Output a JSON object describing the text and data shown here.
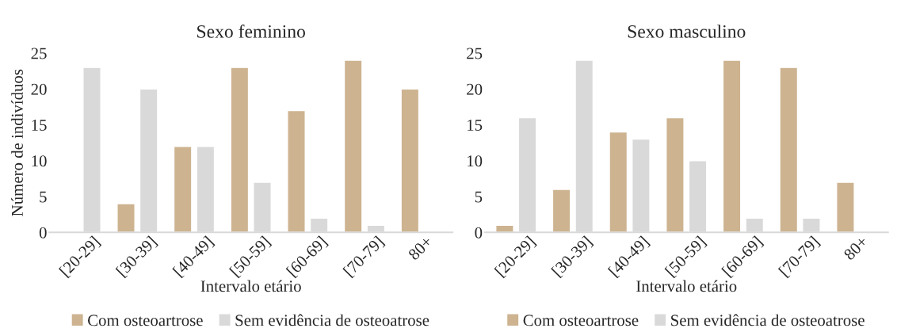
{
  "chart_data": [
    {
      "type": "bar",
      "title": "Sexo feminino",
      "xlabel": "Intervalo etário",
      "ylabel": "Número de indivíduos",
      "categories": [
        "[20-29]",
        "[30-39]",
        "[40-49]",
        "[50-59]",
        "[60-69]",
        "[70-79]",
        "80+"
      ],
      "series": [
        {
          "name": "Com osteoartrose",
          "color": "#cdb390",
          "values": [
            null,
            4,
            12,
            23,
            17,
            24,
            20
          ]
        },
        {
          "name": "Sem evidência de osteoatrose",
          "color": "#d9d9d9",
          "values": [
            23,
            20,
            12,
            7,
            2,
            1,
            null
          ]
        }
      ],
      "ylim": [
        0,
        25
      ],
      "yticks": [
        0,
        5,
        10,
        15,
        20,
        25
      ],
      "grid": false,
      "legend": "bottom"
    },
    {
      "type": "bar",
      "title": "Sexo masculino",
      "xlabel": "Intervalo etário",
      "categories": [
        "[20-29]",
        "[30-39]",
        "[40-49]",
        "[50-59]",
        "[60-69]",
        "[70-79]",
        "80+"
      ],
      "series": [
        {
          "name": "Com osteoartrose",
          "color": "#cdb390",
          "values": [
            1,
            6,
            14,
            16,
            24,
            23,
            7
          ]
        },
        {
          "name": "Sem evidência de osteoatrose",
          "color": "#d9d9d9",
          "values": [
            16,
            24,
            13,
            10,
            2,
            2,
            null
          ]
        }
      ],
      "ylim": [
        0,
        25
      ],
      "yticks": [
        0,
        5,
        10,
        15,
        20,
        25
      ],
      "grid": false,
      "legend": "bottom"
    }
  ]
}
